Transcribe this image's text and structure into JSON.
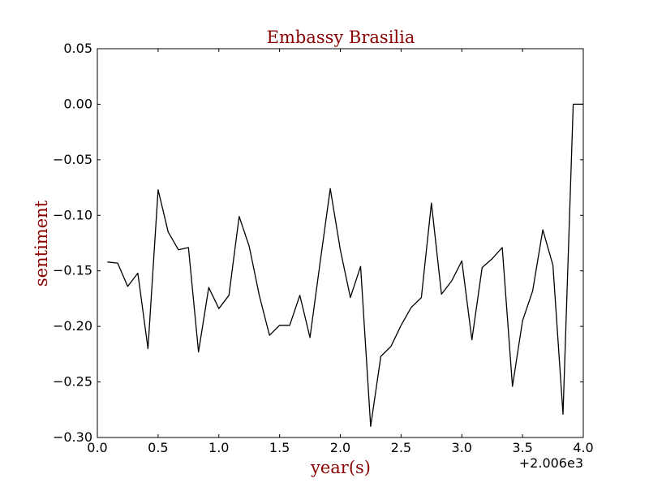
{
  "chart_data": {
    "type": "line",
    "title": "Embassy Brasilia",
    "xlabel": "year(s)",
    "ylabel": "sentiment",
    "x_offset_label": "+2.006e3",
    "xlim": [
      0.0,
      4.0
    ],
    "ylim": [
      -0.3,
      0.05
    ],
    "x_ticks": [
      "0.0",
      "0.5",
      "1.0",
      "1.5",
      "2.0",
      "2.5",
      "3.0",
      "3.5",
      "4.0"
    ],
    "y_ticks": [
      "0.05",
      "0.00",
      "−0.05",
      "−0.10",
      "−0.15",
      "−0.20",
      "−0.25",
      "−0.30"
    ],
    "grid": false,
    "colors": {
      "line": "#000000",
      "title": "#8b0000",
      "axis_label": "#8b0000"
    },
    "series": [
      {
        "x": [
          0.083,
          0.167,
          0.25,
          0.333,
          0.417,
          0.5,
          0.583,
          0.667,
          0.75,
          0.833,
          0.917,
          1.0,
          1.083,
          1.167,
          1.25,
          1.333,
          1.417,
          1.5,
          1.583,
          1.667,
          1.75,
          1.833,
          1.917,
          2.0,
          2.083,
          2.167,
          2.25,
          2.333,
          2.417,
          2.5,
          2.583,
          2.667,
          2.75,
          2.833,
          2.917,
          3.0,
          3.083,
          3.167,
          3.25,
          3.333,
          3.417,
          3.5,
          3.583,
          3.667,
          3.75,
          3.833,
          3.917,
          4.0
        ],
        "y": [
          -0.142,
          -0.143,
          -0.164,
          -0.152,
          -0.22,
          -0.077,
          -0.115,
          -0.131,
          -0.129,
          -0.223,
          -0.165,
          -0.184,
          -0.172,
          -0.101,
          -0.128,
          -0.172,
          -0.208,
          -0.199,
          -0.199,
          -0.172,
          -0.21,
          -0.143,
          -0.076,
          -0.131,
          -0.174,
          -0.146,
          -0.29,
          -0.227,
          -0.218,
          -0.199,
          -0.183,
          -0.174,
          -0.089,
          -0.171,
          -0.159,
          -0.141,
          -0.212,
          -0.147,
          -0.139,
          -0.129,
          -0.254,
          -0.195,
          -0.168,
          -0.113,
          -0.145,
          -0.279,
          0.0,
          0.0
        ]
      }
    ]
  }
}
